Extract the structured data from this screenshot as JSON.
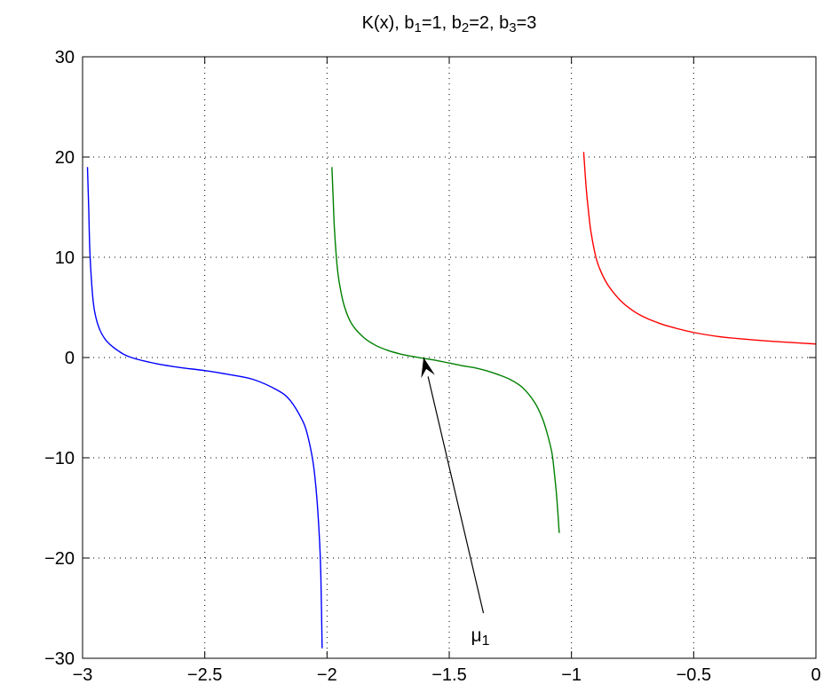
{
  "chart_data": {
    "type": "line",
    "title": {
      "parts": [
        {
          "text": "K(x), b",
          "sub": false
        },
        {
          "text": "1",
          "sub": true
        },
        {
          "text": "=1, b",
          "sub": false
        },
        {
          "text": "2",
          "sub": true
        },
        {
          "text": "=2, b",
          "sub": false
        },
        {
          "text": "3",
          "sub": true
        },
        {
          "text": "=3",
          "sub": false
        }
      ]
    },
    "xlabel": "",
    "ylabel": "",
    "xlim": [
      -3,
      0
    ],
    "ylim": [
      -30,
      30
    ],
    "x_ticks": [
      -3,
      -2.5,
      -2,
      -1.5,
      -1,
      -0.5,
      0
    ],
    "x_tick_labels": [
      "−3",
      "−2.5",
      "−2",
      "−1.5",
      "−1",
      "−0.5",
      "0"
    ],
    "y_ticks": [
      -30,
      -20,
      -10,
      0,
      10,
      20,
      30
    ],
    "y_tick_labels": [
      "−30",
      "−20",
      "−10",
      "0",
      "10",
      "20",
      "30"
    ],
    "grid": true,
    "grid_style": "dotted",
    "series": [
      {
        "color": "#0000ff",
        "x": [
          -2.98,
          -2.975,
          -2.97,
          -2.96,
          -2.95,
          -2.93,
          -2.9,
          -2.85,
          -2.8,
          -2.7,
          -2.6,
          -2.5,
          -2.4,
          -2.3,
          -2.2,
          -2.15,
          -2.1,
          -2.08,
          -2.06,
          -2.05,
          -2.04,
          -2.03,
          -2.025,
          -2.02
        ],
        "y": [
          19.0,
          15.0,
          10.5,
          6.5,
          4.5,
          2.8,
          1.6,
          0.6,
          0.0,
          -0.6,
          -1.0,
          -1.3,
          -1.7,
          -2.2,
          -3.3,
          -4.3,
          -6.3,
          -7.7,
          -10.0,
          -11.8,
          -14.5,
          -18.5,
          -22.0,
          -29.0
        ]
      },
      {
        "color": "#008000",
        "x": [
          -1.98,
          -1.975,
          -1.97,
          -1.96,
          -1.95,
          -1.93,
          -1.9,
          -1.85,
          -1.8,
          -1.75,
          -1.7,
          -1.65,
          -1.6,
          -1.55,
          -1.5,
          -1.45,
          -1.4,
          -1.35,
          -1.3,
          -1.25,
          -1.2,
          -1.15,
          -1.12,
          -1.1,
          -1.08,
          -1.07,
          -1.06,
          -1.05
        ],
        "y": [
          19.0,
          16.0,
          13.0,
          9.5,
          7.5,
          5.2,
          3.4,
          2.0,
          1.2,
          0.7,
          0.35,
          0.1,
          -0.1,
          -0.3,
          -0.55,
          -0.8,
          -1.0,
          -1.3,
          -1.7,
          -2.2,
          -3.0,
          -4.5,
          -6.0,
          -7.5,
          -9.5,
          -11.5,
          -14.0,
          -17.5
        ]
      },
      {
        "color": "#ff0000",
        "x": [
          -0.95,
          -0.94,
          -0.93,
          -0.92,
          -0.9,
          -0.88,
          -0.85,
          -0.8,
          -0.75,
          -0.7,
          -0.65,
          -0.6,
          -0.5,
          -0.4,
          -0.3,
          -0.2,
          -0.1,
          0.0
        ],
        "y": [
          20.5,
          17.0,
          14.5,
          12.5,
          10.0,
          8.6,
          7.2,
          5.7,
          4.7,
          4.0,
          3.5,
          3.1,
          2.5,
          2.1,
          1.85,
          1.65,
          1.5,
          1.35
        ]
      }
    ],
    "annotations": [
      {
        "type": "arrow",
        "from": [
          -1.36,
          -25.5
        ],
        "to": [
          -1.605,
          0.0
        ],
        "label": "μ",
        "label_sub": "1"
      }
    ]
  }
}
